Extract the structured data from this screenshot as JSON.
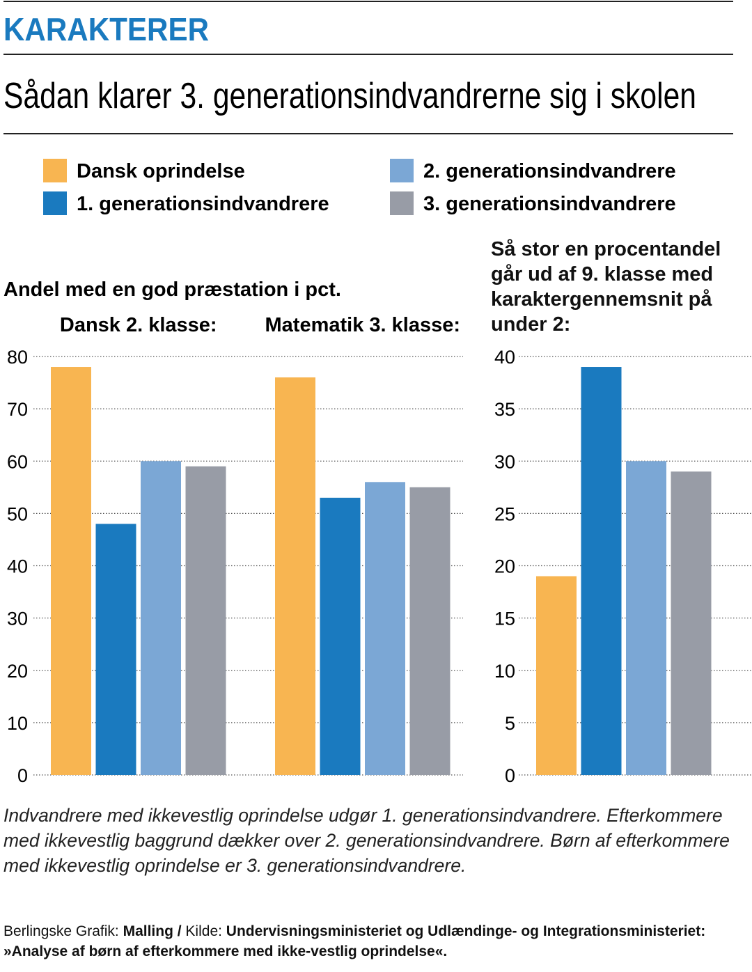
{
  "kicker": "KARAKTERER",
  "title": "Sådan klarer 3. generationsindvandrerne sig i skolen",
  "chart_data": [
    {
      "type": "bar",
      "axis_title": "Andel med en god præstation i pct.",
      "categories": [
        "Dansk 2. klasse:",
        "Matematik 3. klasse:"
      ],
      "series": [
        {
          "name": "Dansk oprindelse",
          "color": "#f8b551",
          "values": [
            78,
            76
          ]
        },
        {
          "name": "1. generationsindvandrere",
          "color": "#1a7abf",
          "values": [
            48,
            53
          ]
        },
        {
          "name": "2. generationsindvandrere",
          "color": "#7ba7d5",
          "values": [
            60,
            56
          ]
        },
        {
          "name": "3. generationsindvandrere",
          "color": "#989ca6",
          "values": [
            59,
            55
          ]
        }
      ],
      "ylim": [
        0,
        80
      ],
      "yticks": [
        0,
        10,
        20,
        30,
        40,
        50,
        60,
        70,
        80
      ],
      "grid": true
    },
    {
      "type": "bar",
      "title": "Så stor en procentandel går ud af 9. klasse med karaktergennemsnit på under 2:",
      "categories": [
        null
      ],
      "series": [
        {
          "color": "#f8b551",
          "values": [
            19
          ]
        },
        {
          "color": "#1a7abf",
          "values": [
            39
          ]
        },
        {
          "color": "#7ba7d5",
          "values": [
            30
          ]
        },
        {
          "color": "#989ca6",
          "values": [
            29
          ]
        }
      ],
      "ylim": [
        0,
        40
      ],
      "yticks": [
        0,
        5,
        10,
        15,
        20,
        25,
        30,
        35,
        40
      ],
      "grid": true
    }
  ],
  "note": "Indvandrere med ikkevestlig oprindelse udgør 1. generationsindvandrere. Efterkommere med ikkevestlig baggrund dækker over 2. generationsindvandrere. Børn af efterkommere med ikkevestlig oprindelse er 3. generationsindvandrere.",
  "source": [
    {
      "text": "Berlingske Grafik:",
      "bold": false
    },
    {
      "text": "Malling /",
      "bold": true
    },
    {
      "text": "Kilde:",
      "bold": false
    },
    {
      "text": "Undervisningsministeriet og Udlændinge- og Integrationsministeriet: »Analyse af børn af efterkommere med ikke-vestlig oprindelse«.",
      "bold": true
    }
  ]
}
